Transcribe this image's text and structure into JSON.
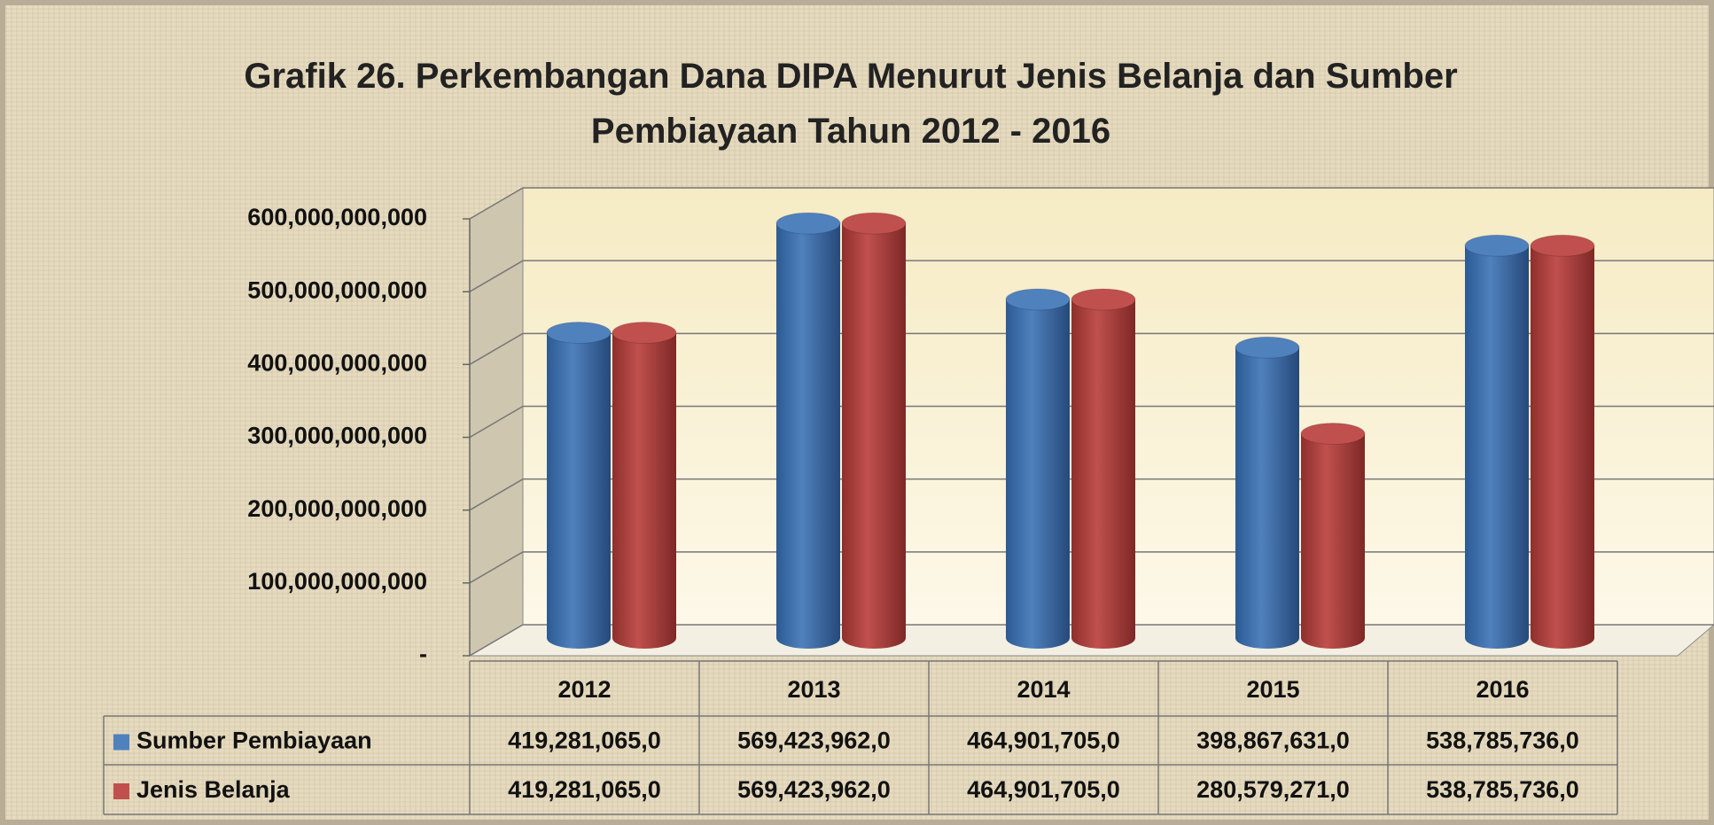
{
  "chart_data": {
    "type": "bar3d",
    "title": "Grafik 26. Perkembangan Dana DIPA Menurut Jenis Belanja dan Sumber Pembiayaan Tahun 2012 - 2016",
    "categories": [
      "2012",
      "2013",
      "2014",
      "2015",
      "2016"
    ],
    "series": [
      {
        "name": "Sumber Pembiayaan",
        "color": "#4f81bd",
        "values": [
          419281065000,
          569423962000,
          464901705000,
          398867631000,
          538785736000
        ],
        "value_labels": [
          "419,281,065,0",
          "569,423,962,0",
          "464,901,705,0",
          "398,867,631,0",
          "538,785,736,0"
        ]
      },
      {
        "name": "Jenis Belanja",
        "color": "#c0504d",
        "values": [
          419281065000,
          569423962000,
          464901705000,
          280579271000,
          538785736000
        ],
        "value_labels": [
          "419,281,065,0",
          "569,423,962,0",
          "464,901,705,0",
          "280,579,271,0",
          "538,785,736,0"
        ]
      }
    ],
    "ylim": [
      0,
      600000000000
    ],
    "yticks": [
      {
        "value": 0,
        "label": "-"
      },
      {
        "value": 100000000000,
        "label": "100,000,000,000"
      },
      {
        "value": 200000000000,
        "label": "200,000,000,000"
      },
      {
        "value": 300000000000,
        "label": "300,000,000,000"
      },
      {
        "value": 400000000000,
        "label": "400,000,000,000"
      },
      {
        "value": 500000000000,
        "label": "500,000,000,000"
      },
      {
        "value": 600000000000,
        "label": "600,000,000,000"
      }
    ],
    "grid": true,
    "data_table": true
  }
}
